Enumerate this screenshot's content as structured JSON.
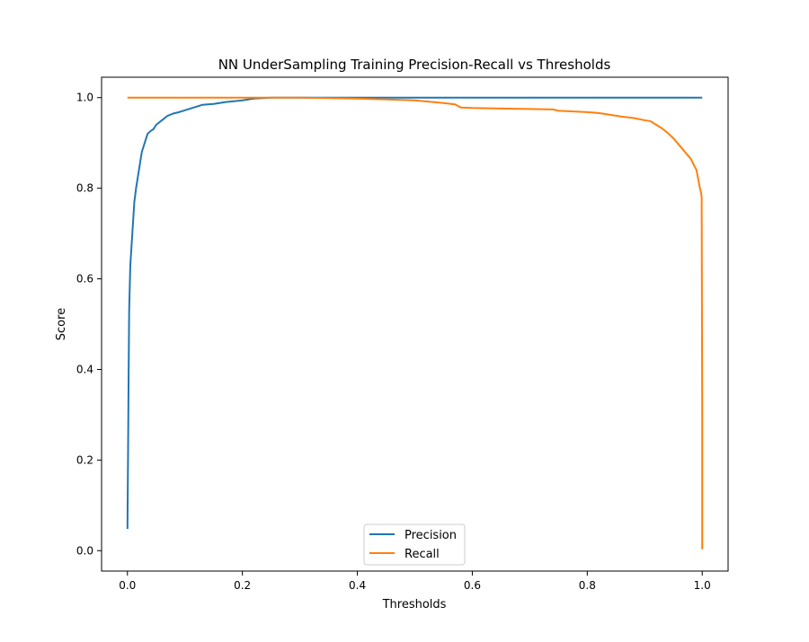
{
  "chart_data": {
    "type": "line",
    "title": "NN UnderSampling Training Precision-Recall vs Thresholds",
    "xlabel": "Thresholds",
    "ylabel": "Score",
    "xlim": [
      -0.045,
      1.045
    ],
    "ylim": [
      -0.045,
      1.045
    ],
    "xticks": [
      "0.0",
      "0.2",
      "0.4",
      "0.6",
      "0.8",
      "1.0"
    ],
    "yticks": [
      "0.0",
      "0.2",
      "0.4",
      "0.6",
      "0.8",
      "1.0"
    ],
    "grid": false,
    "legend_position": "lower center",
    "series": [
      {
        "name": "Precision",
        "color": "#1f77b4",
        "x": [
          0.0,
          0.001,
          0.002,
          0.003,
          0.005,
          0.008,
          0.01,
          0.012,
          0.015,
          0.02,
          0.025,
          0.03,
          0.035,
          0.04,
          0.045,
          0.05,
          0.06,
          0.07,
          0.08,
          0.09,
          0.1,
          0.12,
          0.13,
          0.15,
          0.17,
          0.2,
          0.22,
          0.25,
          0.3,
          0.35,
          0.4,
          0.5,
          0.6,
          0.7,
          0.8,
          0.9,
          1.0
        ],
        "y": [
          0.048,
          0.2,
          0.38,
          0.53,
          0.63,
          0.69,
          0.73,
          0.77,
          0.8,
          0.84,
          0.88,
          0.9,
          0.92,
          0.926,
          0.93,
          0.94,
          0.95,
          0.96,
          0.965,
          0.968,
          0.972,
          0.98,
          0.984,
          0.986,
          0.99,
          0.994,
          0.998,
          1.0,
          1.0,
          1.0,
          1.0,
          1.0,
          1.0,
          1.0,
          1.0,
          1.0,
          1.0
        ]
      },
      {
        "name": "Recall",
        "color": "#ff7f0e",
        "x": [
          0.0,
          0.1,
          0.2,
          0.25,
          0.3,
          0.35,
          0.4,
          0.45,
          0.5,
          0.55,
          0.57,
          0.58,
          0.6,
          0.65,
          0.7,
          0.74,
          0.75,
          0.8,
          0.82,
          0.84,
          0.86,
          0.88,
          0.9,
          0.91,
          0.92,
          0.93,
          0.94,
          0.95,
          0.96,
          0.97,
          0.98,
          0.99,
          0.993,
          0.996,
          0.998,
          0.999,
          1.0,
          1.0
        ],
        "y": [
          1.0,
          1.0,
          1.0,
          1.0,
          1.0,
          0.999,
          0.998,
          0.996,
          0.994,
          0.988,
          0.985,
          0.978,
          0.977,
          0.976,
          0.975,
          0.974,
          0.971,
          0.968,
          0.966,
          0.962,
          0.958,
          0.955,
          0.95,
          0.948,
          0.94,
          0.932,
          0.922,
          0.91,
          0.895,
          0.88,
          0.865,
          0.84,
          0.82,
          0.8,
          0.79,
          0.78,
          0.3,
          0.003
        ]
      }
    ]
  }
}
